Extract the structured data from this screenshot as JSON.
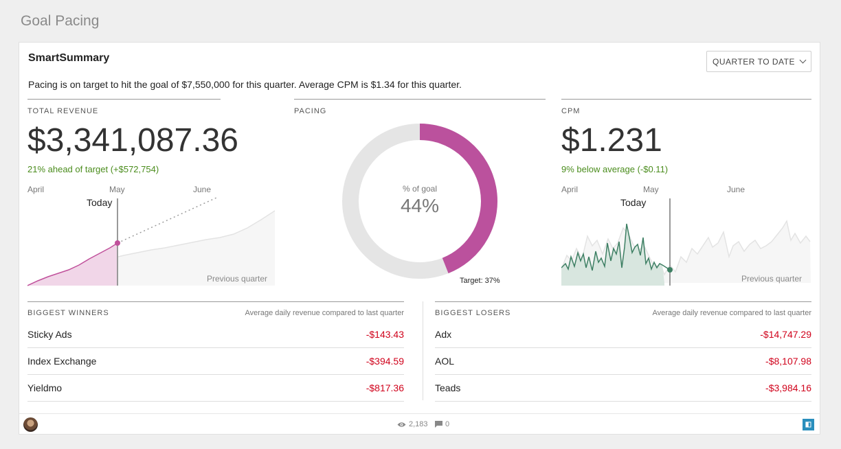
{
  "page": {
    "title": "Goal Pacing"
  },
  "card": {
    "title": "SmartSummary",
    "range_label": "QUARTER TO DATE",
    "summary": "Pacing is on target to hit the goal of $7,550,000 for this quarter. Average CPM is $1.34 for this quarter."
  },
  "revenue": {
    "label": "TOTAL REVENUE",
    "value": "$3,341,087.36",
    "delta": "21% ahead of target (+$572,754)",
    "months": [
      "April",
      "May",
      "June"
    ],
    "today_label": "Today",
    "prev_label": "Previous quarter",
    "accent": "#c0509b"
  },
  "pacing": {
    "label": "PACING",
    "center_label": "% of goal",
    "center_value": "44%",
    "percent": 0.44,
    "target_label": "Target: 37%",
    "target": 0.37,
    "accent": "#bb519d",
    "track": "#e5e5e5"
  },
  "cpm": {
    "label": "CPM",
    "value": "$1.231",
    "delta": "9% below average (-$0.11)",
    "months": [
      "April",
      "May",
      "June"
    ],
    "today_label": "Today",
    "prev_label": "Previous quarter",
    "accent": "#3d7f63"
  },
  "winners": {
    "title": "BIGGEST WINNERS",
    "subtitle": "Average daily revenue compared to last quarter",
    "rows": [
      {
        "name": "Sticky Ads",
        "value": "-$143.43"
      },
      {
        "name": "Index Exchange",
        "value": "-$394.59"
      },
      {
        "name": "Yieldmo",
        "value": "-$817.36"
      }
    ]
  },
  "losers": {
    "title": "BIGGEST LOSERS",
    "subtitle": "Average daily revenue compared to last quarter",
    "rows": [
      {
        "name": "Adx",
        "value": "-$14,747.29"
      },
      {
        "name": "AOL",
        "value": "-$8,107.98"
      },
      {
        "name": "Teads",
        "value": "-$3,984.16"
      }
    ]
  },
  "footer": {
    "views": "2,183",
    "comments": "0"
  }
}
